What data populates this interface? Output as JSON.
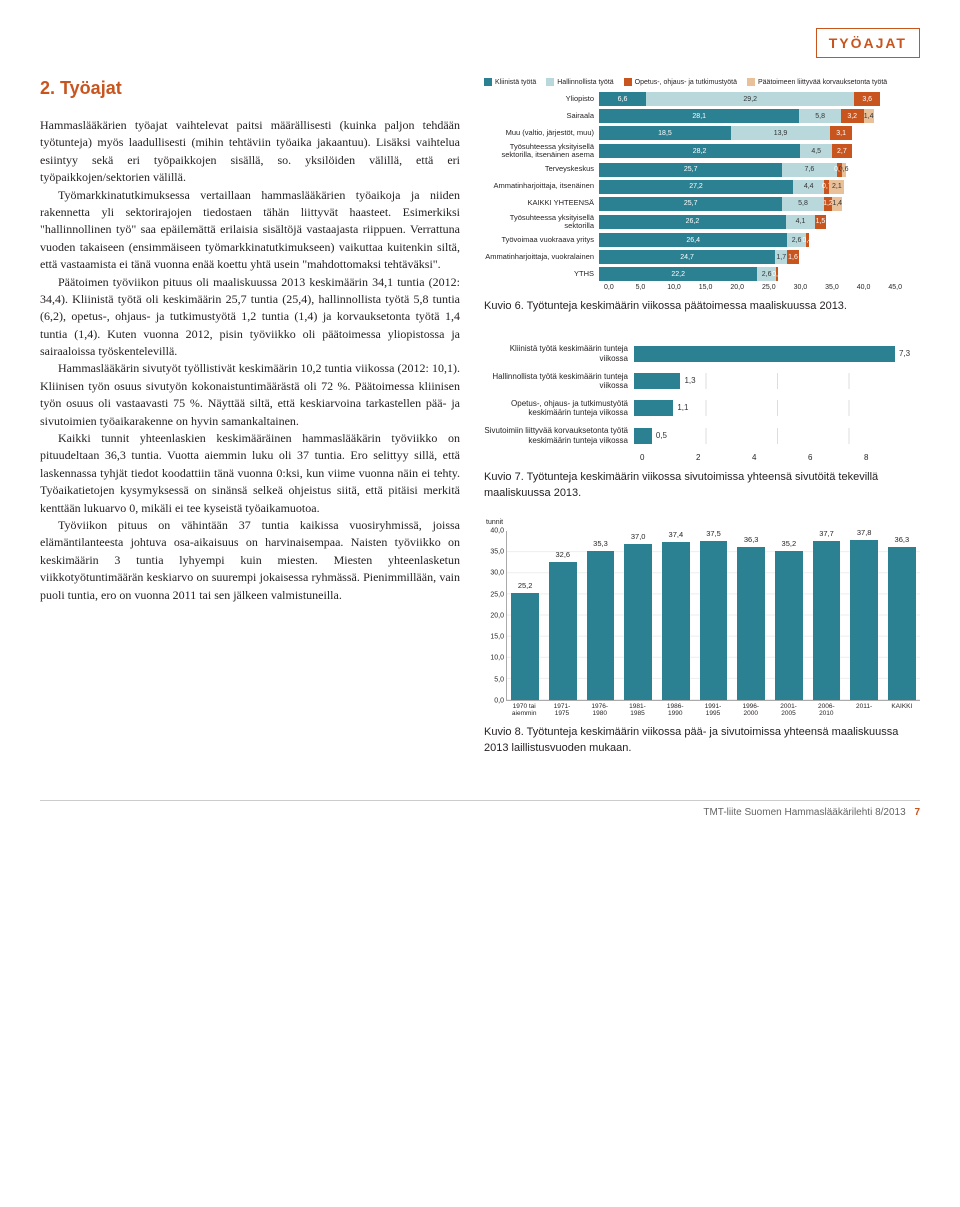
{
  "header_label": "TYÖAJAT",
  "section_title": "2. Työajat",
  "paragraphs": [
    "Hammaslääkärien työajat vaihtelevat paitsi määrällisesti (kuinka paljon tehdään työtunteja) myös laadullisesti (mihin tehtäviin työaika jakaantuu). Lisäksi vaihtelua esiintyy sekä eri työpaikkojen sisällä, so. yksilöiden välillä, että eri työpaikkojen/sektorien välillä.",
    "Työmarkkinatutkimuksessa vertaillaan hammaslääkärien työaikoja ja niiden rakennetta yli sektorirajojen tiedostaen tähän liittyvät haasteet. Esimerkiksi \"hallinnollinen työ\" saa epäilemättä erilaisia sisältöjä vastaajasta riippuen. Verrattuna vuoden takaiseen (ensimmäiseen työmarkkinatutkimukseen) vaikuttaa kuitenkin siltä, että vastaamista ei tänä vuonna enää koettu yhtä usein \"mahdottomaksi tehtäväksi\".",
    "Päätoimen työviikon pituus oli maaliskuussa 2013 keskimäärin 34,1 tuntia (2012: 34,4). Kliinistä työtä oli keskimäärin 25,7 tuntia (25,4), hallinnollista työtä 5,8 tuntia (6,2), opetus-, ohjaus- ja tutkimustyötä 1,2 tuntia (1,4) ja korvauksetonta työtä 1,4 tuntia (1,4). Kuten vuonna 2012, pisin työviikko oli päätoimessa yliopistossa ja sairaaloissa työskentelevillä.",
    "Hammaslääkärin sivutyöt työllistivät keskimäärin 10,2 tuntia viikossa (2012: 10,1). Kliinisen työn osuus sivutyön kokonaistuntimäärästä oli 72 %. Päätoimessa kliinisen työn osuus oli vastaavasti 75 %. Näyttää siltä, että keskiarvoina tarkastellen pää- ja sivutoimien työaikarakenne on hyvin samankaltainen.",
    "Kaikki tunnit yhteenlaskien keskimääräinen hammaslääkärin työviikko on pituudeltaan 36,3 tuntia. Vuotta aiemmin luku oli 37 tuntia. Ero selittyy sillä, että laskennassa tyhjät tiedot koodattiin tänä vuonna 0:ksi, kun viime vuonna näin ei tehty. Työaikatietojen kysymyksessä on sinänsä selkeä ohjeistus siitä, että pitäisi merkitä kenttään lukuarvo 0, mikäli ei tee kyseistä työaikamuotoa.",
    "Työviikon pituus on vähintään 37 tuntia kaikissa vuosiryhmissä, joissa elämäntilanteesta johtuva osa-aikaisuus on harvinaisempaa. Naisten työviikko on keskimäärin 3 tuntia lyhyempi kuin miesten. Miesten yhteenlasketun viikkotyötuntimäärän keskiarvo on suurempi jokaisessa ryhmässä. Pienimmillään, vain puoli tuntia, ero on vuonna 2011 tai sen jälkeen valmistuneilla."
  ],
  "chart6": {
    "type": "stacked-horizontal-bar",
    "max": 45,
    "legend": [
      {
        "label": "Kliinistä työtä",
        "color": "#2b8191"
      },
      {
        "label": "Hallinnollista työtä",
        "color": "#b8d8dc"
      },
      {
        "label": "Opetus-, ohjaus- ja tutkimustyötä",
        "color": "#c8541e"
      },
      {
        "label": "Päätoimeen liittyvää korvauksetonta työtä",
        "color": "#e8c19a"
      }
    ],
    "rows": [
      {
        "label": "Yliopisto",
        "segs": [
          6.6,
          29.2,
          3.6,
          0
        ]
      },
      {
        "label": "Sairaala",
        "segs": [
          28.1,
          5.8,
          3.2,
          1.4
        ]
      },
      {
        "label": "Muu (valtio, järjestöt, muu)",
        "segs": [
          18.5,
          13.9,
          3.1,
          0
        ]
      },
      {
        "label": "Työsuhteessa yksityisellä sektorilla, itsenäinen asema",
        "segs": [
          28.2,
          4.5,
          2.7,
          0
        ]
      },
      {
        "label": "Terveyskeskus",
        "segs": [
          25.7,
          7.6,
          0.7,
          0.6
        ]
      },
      {
        "label": "Ammatinharjoittaja, itsenäinen",
        "segs": [
          27.2,
          4.4,
          0.7,
          2.1
        ]
      },
      {
        "label": "KAIKKI YHTEENSÄ",
        "segs": [
          25.7,
          5.8,
          1.2,
          1.4
        ]
      },
      {
        "label": "Työsuhteessa yksityisellä sektorilla",
        "segs": [
          26.2,
          4.1,
          1.5,
          0
        ]
      },
      {
        "label": "Työvoimaa vuokraava yritys",
        "segs": [
          26.4,
          2.6,
          0.4,
          0
        ]
      },
      {
        "label": "Ammatinharjoittaja, vuokralainen",
        "segs": [
          24.7,
          1.7,
          1.6,
          0
        ]
      },
      {
        "label": "YTHS",
        "segs": [
          22.2,
          2.6,
          0.3,
          0
        ]
      }
    ],
    "xticks": [
      "0,0",
      "5,0",
      "10,0",
      "15,0",
      "20,0",
      "25,0",
      "30,0",
      "35,0",
      "40,0",
      "45,0"
    ],
    "caption": "Kuvio 6. Työtunteja keskimäärin viikossa päätoimessa maaliskuussa 2013."
  },
  "chart7": {
    "type": "horizontal-bar",
    "max": 8,
    "bar_color": "#2b8191",
    "rows": [
      {
        "label": "Kliinistä työtä keskimäärin tunteja viikossa",
        "value": 7.3
      },
      {
        "label": "Hallinnollista työtä keskimäärin tunteja viikossa",
        "value": 1.3
      },
      {
        "label": "Opetus-, ohjaus- ja tutkimustyötä keskimäärin tunteja viikossa",
        "value": 1.1
      },
      {
        "label": "Sivutoimiin liittyvää korvauksetonta työtä keskimäärin tunteja viikossa",
        "value": 0.5
      }
    ],
    "xticks": [
      "0",
      "2",
      "4",
      "6",
      "8"
    ],
    "caption": "Kuvio 7. Työtunteja keskimäärin viikossa sivutoimissa yhteensä sivutöitä tekevillä maaliskuussa 2013."
  },
  "chart8": {
    "type": "bar",
    "ymax": 40,
    "bar_color": "#2b8191",
    "ytitle": "tunnit",
    "yticks": [
      "0,0",
      "5,0",
      "10,0",
      "15,0",
      "20,0",
      "25,0",
      "30,0",
      "35,0",
      "40,0"
    ],
    "bars": [
      {
        "label": "1970 tai aiemmin",
        "value": 25.2
      },
      {
        "label": "1971-1975",
        "value": 32.6
      },
      {
        "label": "1976-1980",
        "value": 35.3
      },
      {
        "label": "1981-1985",
        "value": 37.0
      },
      {
        "label": "1986-1990",
        "value": 37.4
      },
      {
        "label": "1991-1995",
        "value": 37.5
      },
      {
        "label": "1996-2000",
        "value": 36.3
      },
      {
        "label": "2001-2005",
        "value": 35.2
      },
      {
        "label": "2006-2010",
        "value": 37.7
      },
      {
        "label": "2011-",
        "value": 37.8
      },
      {
        "label": "KAIKKI",
        "value": 36.3
      }
    ],
    "caption": "Kuvio 8. Työtunteja keskimäärin viikossa pää- ja sivutoimissa yhteensä maaliskuussa 2013 laillistusvuoden mukaan."
  },
  "footer": {
    "text": "TMT-liite Suomen Hammaslääkärilehti 8/2013",
    "page": "7"
  }
}
